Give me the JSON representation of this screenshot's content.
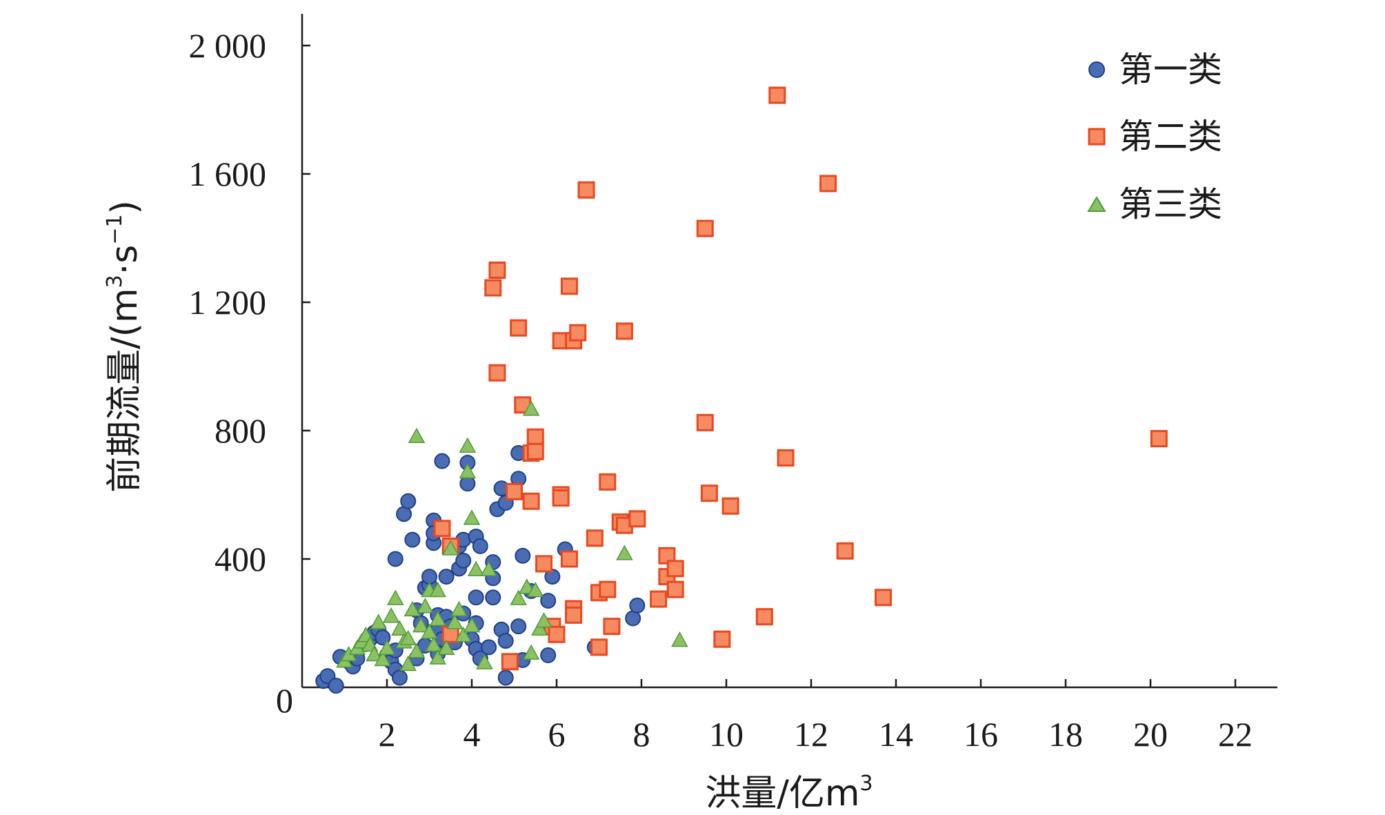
{
  "colors": {
    "s1_fill": "#4a6cb3",
    "s1_stroke": "#1f3f8a",
    "s2_fill": "#f68b62",
    "s2_stroke": "#e8481f",
    "s3_fill": "#8cc163",
    "s3_stroke": "#4e9a38"
  },
  "chart_data": {
    "type": "scatter",
    "title": "",
    "xlabel_main": "洪量/亿m",
    "xlabel_sup": "3",
    "ylabel_main": "前期流量/(m",
    "ylabel_sup1": "3",
    "ylabel_mid": "·s",
    "ylabel_sup2": "−1",
    "ylabel_end": ")",
    "xlim": [
      0,
      22
    ],
    "ylim": [
      0,
      2000
    ],
    "xticks": [
      2,
      4,
      6,
      8,
      10,
      12,
      14,
      16,
      18,
      20,
      22
    ],
    "yticks": [
      0,
      400,
      800,
      1200,
      1600,
      2000
    ],
    "ytick_labels": [
      "0",
      "400",
      "800",
      "1 200",
      "1 600",
      "2 000"
    ],
    "grid": false,
    "legend_position": "top-right",
    "series": [
      {
        "name": "第一类",
        "marker": "circle",
        "points": [
          [
            0.5,
            20
          ],
          [
            0.6,
            35
          ],
          [
            0.8,
            5
          ],
          [
            0.9,
            95
          ],
          [
            1.1,
            80
          ],
          [
            1.2,
            65
          ],
          [
            1.3,
            90
          ],
          [
            1.5,
            135
          ],
          [
            1.6,
            150
          ],
          [
            1.7,
            170
          ],
          [
            1.8,
            180
          ],
          [
            1.9,
            155
          ],
          [
            2.0,
            100
          ],
          [
            2.1,
            80
          ],
          [
            2.2,
            115
          ],
          [
            2.2,
            55
          ],
          [
            2.3,
            30
          ],
          [
            2.2,
            400
          ],
          [
            2.4,
            540
          ],
          [
            2.5,
            580
          ],
          [
            2.6,
            460
          ],
          [
            2.7,
            90
          ],
          [
            2.7,
            240
          ],
          [
            2.8,
            200
          ],
          [
            2.9,
            130
          ],
          [
            2.9,
            310
          ],
          [
            3.0,
            320
          ],
          [
            3.0,
            345
          ],
          [
            3.1,
            520
          ],
          [
            3.1,
            450
          ],
          [
            3.1,
            480
          ],
          [
            3.2,
            225
          ],
          [
            3.2,
            180
          ],
          [
            3.2,
            105
          ],
          [
            3.3,
            150
          ],
          [
            3.3,
            705
          ],
          [
            3.4,
            345
          ],
          [
            3.4,
            220
          ],
          [
            3.5,
            190
          ],
          [
            3.6,
            140
          ],
          [
            3.7,
            370
          ],
          [
            3.7,
            440
          ],
          [
            3.8,
            395
          ],
          [
            3.8,
            460
          ],
          [
            3.8,
            230
          ],
          [
            3.9,
            700
          ],
          [
            3.9,
            635
          ],
          [
            4.0,
            150
          ],
          [
            4.1,
            280
          ],
          [
            4.1,
            470
          ],
          [
            4.1,
            200
          ],
          [
            4.1,
            120
          ],
          [
            4.2,
            440
          ],
          [
            4.2,
            90
          ],
          [
            4.4,
            125
          ],
          [
            4.5,
            390
          ],
          [
            4.5,
            340
          ],
          [
            4.5,
            280
          ],
          [
            4.6,
            555
          ],
          [
            4.7,
            620
          ],
          [
            4.7,
            180
          ],
          [
            4.8,
            575
          ],
          [
            4.8,
            145
          ],
          [
            4.8,
            30
          ],
          [
            5.1,
            190
          ],
          [
            5.1,
            730
          ],
          [
            5.1,
            650
          ],
          [
            5.2,
            410
          ],
          [
            5.2,
            85
          ],
          [
            5.4,
            300
          ],
          [
            5.8,
            270
          ],
          [
            5.8,
            100
          ],
          [
            5.9,
            345
          ],
          [
            6.0,
            170
          ],
          [
            6.2,
            430
          ],
          [
            6.9,
            125
          ],
          [
            7.8,
            215
          ],
          [
            7.9,
            255
          ]
        ]
      },
      {
        "name": "第二类",
        "marker": "square",
        "points": [
          [
            3.3,
            495
          ],
          [
            3.5,
            440
          ],
          [
            3.5,
            165
          ],
          [
            4.5,
            1245
          ],
          [
            4.6,
            980
          ],
          [
            4.6,
            1300
          ],
          [
            4.9,
            80
          ],
          [
            5.0,
            610
          ],
          [
            5.1,
            1120
          ],
          [
            5.2,
            880
          ],
          [
            5.4,
            730
          ],
          [
            5.4,
            580
          ],
          [
            5.5,
            780
          ],
          [
            5.5,
            735
          ],
          [
            5.7,
            385
          ],
          [
            5.9,
            190
          ],
          [
            6.0,
            165
          ],
          [
            6.1,
            1080
          ],
          [
            6.1,
            600
          ],
          [
            6.1,
            590
          ],
          [
            6.3,
            1250
          ],
          [
            6.3,
            400
          ],
          [
            6.4,
            1080
          ],
          [
            6.4,
            245
          ],
          [
            6.4,
            225
          ],
          [
            6.5,
            1105
          ],
          [
            6.7,
            1550
          ],
          [
            6.9,
            465
          ],
          [
            7.0,
            295
          ],
          [
            7.0,
            125
          ],
          [
            7.2,
            640
          ],
          [
            7.2,
            305
          ],
          [
            7.3,
            190
          ],
          [
            7.5,
            515
          ],
          [
            7.6,
            505
          ],
          [
            7.6,
            1110
          ],
          [
            7.9,
            525
          ],
          [
            8.4,
            275
          ],
          [
            8.6,
            410
          ],
          [
            8.6,
            345
          ],
          [
            8.8,
            370
          ],
          [
            8.8,
            305
          ],
          [
            9.5,
            825
          ],
          [
            9.5,
            1430
          ],
          [
            9.6,
            605
          ],
          [
            9.9,
            150
          ],
          [
            10.1,
            565
          ],
          [
            10.9,
            220
          ],
          [
            11.2,
            1845
          ],
          [
            11.4,
            715
          ],
          [
            12.4,
            1570
          ],
          [
            12.8,
            425
          ],
          [
            13.7,
            280
          ],
          [
            20.2,
            775
          ]
        ]
      },
      {
        "name": "第三类",
        "marker": "triangle",
        "points": [
          [
            1.0,
            80
          ],
          [
            1.1,
            100
          ],
          [
            1.3,
            120
          ],
          [
            1.4,
            140
          ],
          [
            1.5,
            160
          ],
          [
            1.6,
            130
          ],
          [
            1.7,
            100
          ],
          [
            1.8,
            200
          ],
          [
            1.9,
            85
          ],
          [
            2.0,
            120
          ],
          [
            2.1,
            220
          ],
          [
            2.2,
            275
          ],
          [
            2.3,
            180
          ],
          [
            2.4,
            140
          ],
          [
            2.5,
            70
          ],
          [
            2.5,
            150
          ],
          [
            2.6,
            240
          ],
          [
            2.7,
            780
          ],
          [
            2.7,
            110
          ],
          [
            2.8,
            190
          ],
          [
            2.9,
            250
          ],
          [
            3.0,
            300
          ],
          [
            3.0,
            170
          ],
          [
            3.1,
            130
          ],
          [
            3.2,
            90
          ],
          [
            3.2,
            210
          ],
          [
            3.2,
            300
          ],
          [
            3.4,
            120
          ],
          [
            3.5,
            430
          ],
          [
            3.6,
            200
          ],
          [
            3.7,
            240
          ],
          [
            3.8,
            160
          ],
          [
            3.9,
            750
          ],
          [
            3.9,
            670
          ],
          [
            4.0,
            525
          ],
          [
            4.0,
            190
          ],
          [
            4.1,
            365
          ],
          [
            4.3,
            75
          ],
          [
            4.4,
            365
          ],
          [
            5.1,
            275
          ],
          [
            5.3,
            310
          ],
          [
            5.4,
            865
          ],
          [
            5.4,
            105
          ],
          [
            5.5,
            300
          ],
          [
            5.6,
            180
          ],
          [
            5.7,
            205
          ],
          [
            7.6,
            415
          ],
          [
            8.9,
            145
          ]
        ]
      }
    ]
  }
}
